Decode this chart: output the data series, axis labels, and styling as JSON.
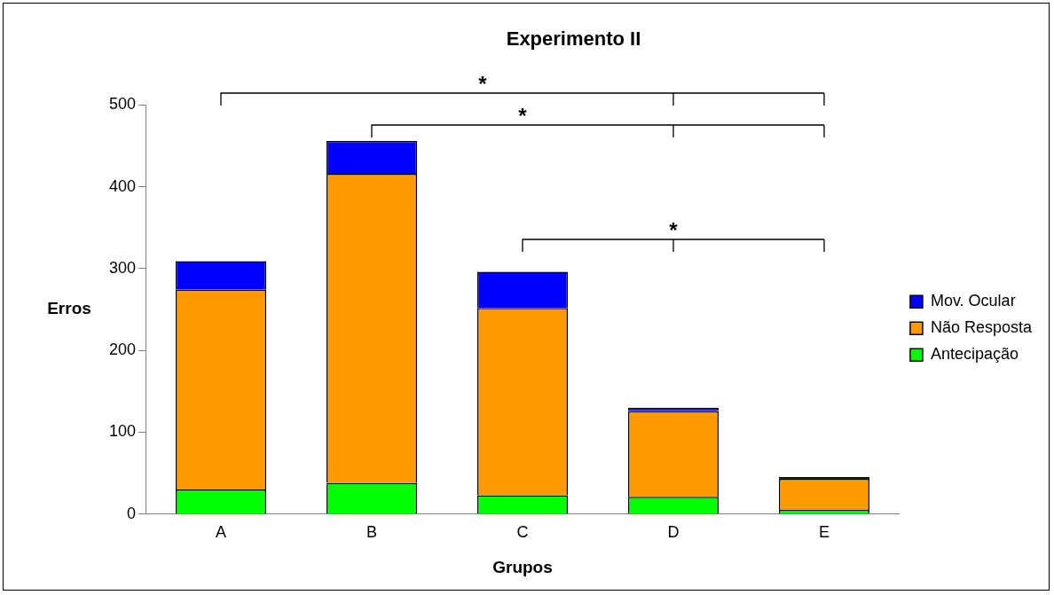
{
  "chart_data": {
    "type": "bar",
    "title": "Experimento II",
    "xlabel": "Grupos",
    "ylabel": "Erros",
    "categories": [
      "A",
      "B",
      "C",
      "D",
      "E"
    ],
    "series": [
      {
        "name": "Antecipação",
        "color": "#00ff00",
        "values": [
          30,
          38,
          23,
          21,
          5
        ]
      },
      {
        "name": "Não Resposta",
        "color": "#ff9900",
        "values": [
          244,
          378,
          229,
          105,
          38
        ]
      },
      {
        "name": "Mov. Ocular",
        "color": "#0000ff",
        "values": [
          35,
          40,
          44,
          4,
          2
        ]
      }
    ],
    "stacked": true,
    "ylim": [
      0,
      500
    ],
    "yticks": [
      0,
      100,
      200,
      300,
      400,
      500
    ],
    "grid": false,
    "legend": "right",
    "annotations": [
      "*",
      "*",
      "*"
    ]
  }
}
